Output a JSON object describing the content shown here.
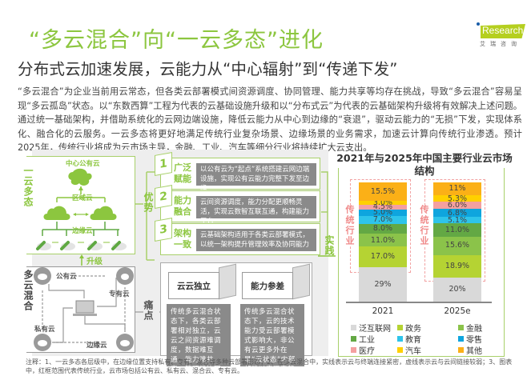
{
  "header": {
    "title": "“多云混合”向“一云多态”进化",
    "subtitle": "分布式云加速发展，云能力从“中心辐射”到“传递下发”",
    "logo": {
      "text": "Research",
      "cn": "艾瑞咨询",
      "accent": "#b5cf1f"
    }
  },
  "intro": "“多云混合”为企业当前用云常态，但各类云部署模式间资源调度、协同管理、能力共享等均存在挑战，导致“多云混合”容易呈现“多云孤岛”状态。以“东数西算”工程为代表的云基础设施升级和以“分布式云”为代表的云基础架构升级将有效解决上述问题。通过统一基础架构，并借助系统化的云网边端设施，降低云能力从中心到边缘的“衰退”，驱动云能力的“无损”下发，实现体系化、融合化的云服务。一云多态将更好地满足传统行业复杂场景、边缘场景的业务需求，加速云计算向传统行业渗透。预计2025年，传统行业将成为云市场主导，金融、工业、汽车等细分行业将持续扩大云支出。",
  "diagram": {
    "one_cloud": {
      "label": "一云多态",
      "center": "中心公有云",
      "region": "区域云",
      "edge": "边缘云"
    },
    "upgrade_label": "升级",
    "multi_cloud": {
      "label": "多云混合",
      "public": "公有云",
      "dedicated": "专有云",
      "private": "私有云",
      "edge": "边缘云"
    },
    "advantages_label": "优势",
    "pain_label": "痛点",
    "practice_label": "实践",
    "advantages": [
      {
        "num": "1",
        "title": "广泛赋能",
        "desc": "以公有云为“起点”系统搭建云网边端设施，实现公有云能力完整下发至边缘"
      },
      {
        "num": "2",
        "title": "能力融合",
        "desc": "云间资源调度，能力分配更顺畅灵活，实现云数智互联互通，构建能力平台"
      },
      {
        "num": "3",
        "title": "架构一致",
        "desc": "云基础架构适用于各类云部署模式，以统一架构提升管理效率及协同能力"
      }
    ],
    "pains": [
      {
        "title": "云云独立",
        "desc": "传统多云混合状态下，各类云部署相对独立，云云之间资源难调度，数据难互通，能力难共享，管理难协同"
      },
      {
        "title": "能力参差",
        "desc": "传统多云混合状态下，云的技术能力受云部署模式影响大，非公有云更多外在是“云状态”内部却难以实现完整的“云能力”"
      }
    ]
  },
  "chart_data": {
    "type": "bar",
    "stacked": true,
    "title": "2021年与2025年中国主要行业云市场结构",
    "categories": [
      "2021",
      "2025e"
    ],
    "series": [
      {
        "name": "泛互联网",
        "color": "#d9d9d9",
        "values": [
          29,
          20
        ],
        "labels": [
          "29%",
          "20%"
        ]
      },
      {
        "name": "政务",
        "color": "#b5d333",
        "values": [
          17.0,
          18.9
        ],
        "labels": [
          "17.0%",
          "18.9%"
        ]
      },
      {
        "name": "金融",
        "color": "#8bc34a",
        "values": [
          11.0,
          15.6
        ],
        "labels": [
          "11.0%",
          "15.6%"
        ]
      },
      {
        "name": "工业",
        "color": "#63a844",
        "values": [
          8.0,
          11.0
        ],
        "labels": [
          "8.0%",
          "11.0%"
        ]
      },
      {
        "name": "教育",
        "color": "#2ec4ea",
        "values": [
          7.0,
          5.1
        ],
        "labels": [
          "7.0%",
          "5.1%"
        ]
      },
      {
        "name": "零售",
        "color": "#0ea5de",
        "values": [
          5.0,
          6.8
        ],
        "labels": [
          "5.0%",
          "6.8%"
        ]
      },
      {
        "name": "医疗",
        "color": "#f4a0a0",
        "values": [
          4.5,
          6.0
        ],
        "labels": [
          "4.5%",
          "6.0%"
        ]
      },
      {
        "name": "汽车",
        "color": "#ffd000",
        "values": [
          3.0,
          5.3
        ],
        "labels": [
          "3.0%",
          "5.3%"
        ]
      },
      {
        "name": "其他",
        "color": "#fbb017",
        "values": [
          15.5,
          11
        ],
        "labels": [
          "15.5%",
          "11%"
        ]
      }
    ],
    "annotation": "传统行业",
    "ylim": [
      0,
      100
    ],
    "legend_position": "bottom"
  },
  "legend": [
    {
      "name": "泛互联网",
      "color": "#d9d9d9"
    },
    {
      "name": "政务",
      "color": "#b5d333"
    },
    {
      "name": "金融",
      "color": "#8bc34a"
    },
    {
      "name": "工业",
      "color": "#63a844"
    },
    {
      "name": "教育",
      "color": "#2ec4ea"
    },
    {
      "name": "零售",
      "color": "#0ea5de"
    },
    {
      "name": "医疗",
      "color": "#f4a0a0"
    },
    {
      "name": "汽车",
      "color": "#ffd000"
    },
    {
      "name": "其他",
      "color": "#fbb017"
    }
  ],
  "footnote": "注释：1、一云多态各层级中，在边缘位置支持私有、专有、混合等多种云部署形态；2、在多云混合中，实线表示云与终端连接紧密，虚线表示云与云间链接较弱；3、图表中，红框范围代表传统行业，云市场包括公有云、私有云、混合云、专有云。"
}
